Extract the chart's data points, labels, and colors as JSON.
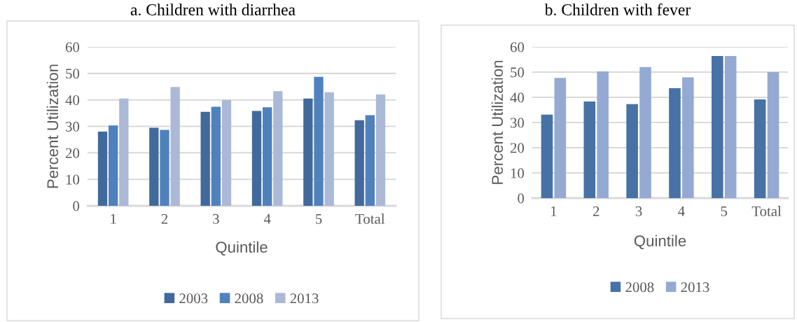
{
  "chart_data": [
    {
      "type": "bar",
      "title": "a. Children with diarrhea",
      "xlabel": "Quintile",
      "ylabel": "Percent Utilization",
      "categories": [
        "1",
        "2",
        "3",
        "4",
        "5",
        "Total"
      ],
      "series": [
        {
          "name": "2003",
          "color": "#41699c",
          "values": [
            28,
            29.5,
            35.5,
            35.8,
            40.5,
            32.3
          ]
        },
        {
          "name": "2008",
          "color": "#4f81bd",
          "values": [
            30.3,
            28.7,
            37.4,
            37.2,
            48.7,
            34.2
          ]
        },
        {
          "name": "2013",
          "color": "#abb9d7",
          "values": [
            40.5,
            44.9,
            39.9,
            43.3,
            42.9,
            42
          ]
        }
      ],
      "ylim": [
        0,
        60
      ],
      "yticks": [
        0,
        10,
        20,
        30,
        40,
        50,
        60
      ],
      "grid": "y",
      "legend": "bottom"
    },
    {
      "type": "bar",
      "title": "b. Children with fever",
      "xlabel": "Quintile",
      "ylabel": "Percent Utilization",
      "categories": [
        "1",
        "2",
        "3",
        "4",
        "5",
        "Total"
      ],
      "series": [
        {
          "name": "2008",
          "color": "#4672a6",
          "values": [
            33.1,
            38.3,
            37.3,
            43.6,
            56.4,
            39.2
          ]
        },
        {
          "name": "2013",
          "color": "#95aad2",
          "values": [
            47.7,
            50.3,
            52,
            47.9,
            56.4,
            50
          ]
        }
      ],
      "ylim": [
        0,
        60
      ],
      "yticks": [
        0,
        10,
        20,
        30,
        40,
        50,
        60
      ],
      "grid": "y",
      "legend": "bottom"
    }
  ]
}
